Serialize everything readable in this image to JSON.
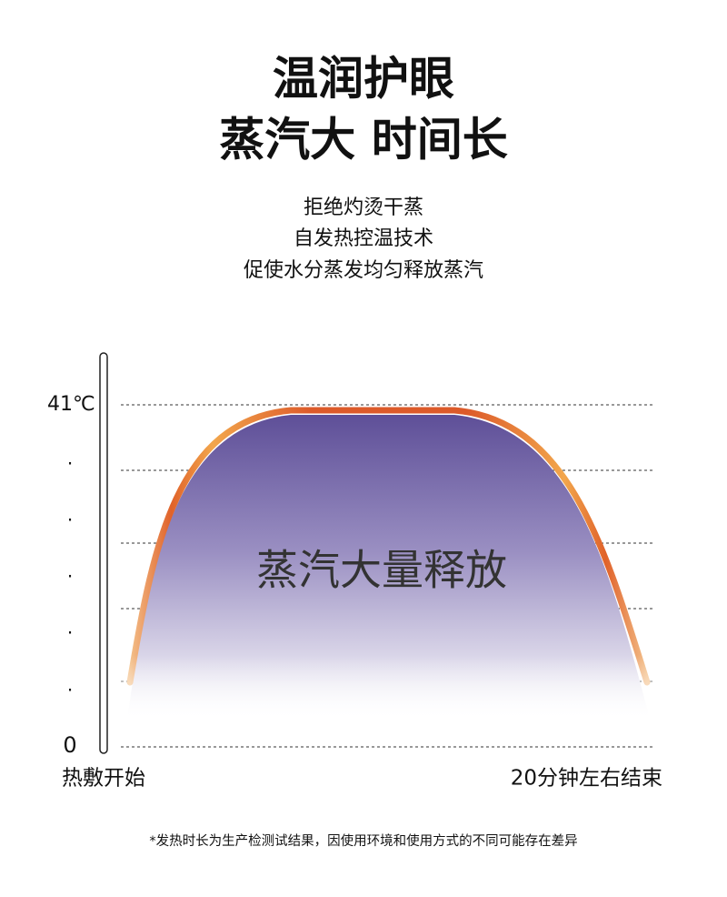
{
  "header": {
    "title_lines": [
      "温润护眼",
      "蒸汽大 时间长"
    ]
  },
  "features": [
    "拒绝灼烫干蒸",
    "自发热控温技术",
    "促使水分蒸发均匀释放蒸汽"
  ],
  "diagram": {
    "y_top_label": "41℃",
    "y_dots": [
      ".",
      ".",
      ".",
      ".",
      "."
    ],
    "y_bottom_label": "0",
    "x_start_label": "热敷开始",
    "x_end_label": "20分钟左右结束",
    "curve_label": "蒸汽大量释放"
  },
  "footnote": "*发热时长为生产检测试结果，因使用环境和使用方式的不同可能存在差异"
}
